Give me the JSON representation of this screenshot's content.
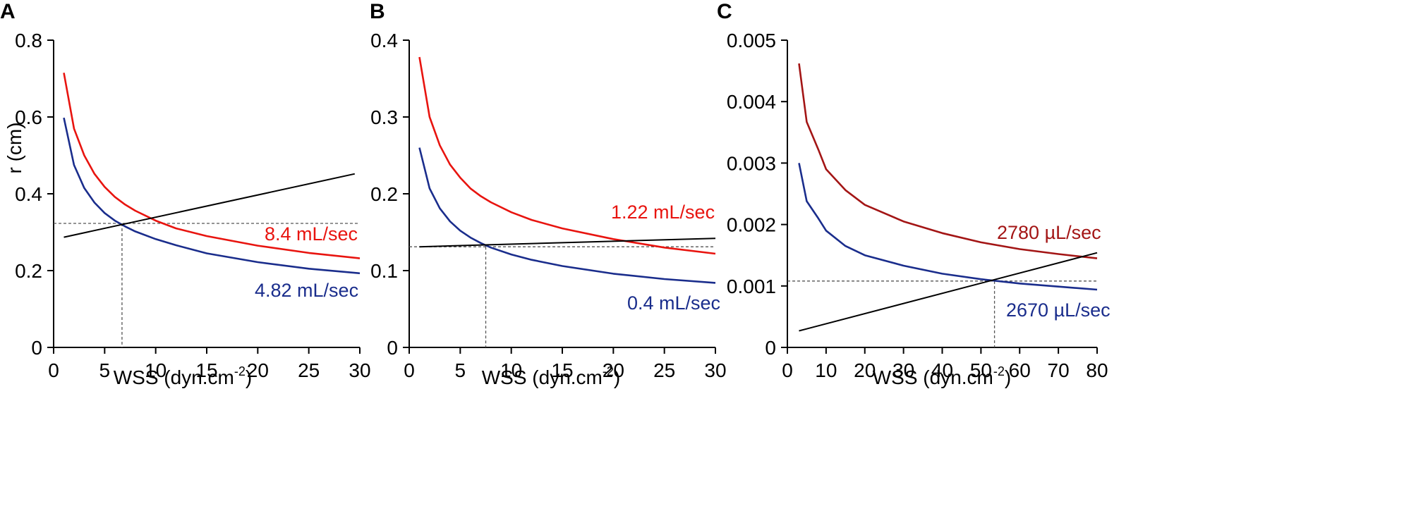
{
  "chart_data": [
    {
      "panel_label": "A",
      "type": "line",
      "xlabel": "WSS (dyn.cm",
      "xlabel_sup": "-2",
      "xlabel_close": ")",
      "ylabel": "r (cm)",
      "xlim": [
        0,
        30
      ],
      "ylim": [
        0,
        0.8
      ],
      "xticks": [
        0,
        5,
        10,
        15,
        20,
        25,
        30
      ],
      "yticks": [
        0,
        0.2,
        0.4,
        0.6,
        0.8
      ],
      "xtick_labels": [
        "0",
        "5",
        "10",
        "15",
        "20",
        "25",
        "30"
      ],
      "ytick_labels": [
        "0",
        "0.2",
        "0.4",
        "0.6",
        "0.8"
      ],
      "series": [
        {
          "name": "8.4 mL/sec",
          "color": "#e8140f",
          "x": [
            1,
            2,
            3,
            4,
            5,
            6,
            7,
            8,
            10,
            12,
            15,
            20,
            25,
            30
          ],
          "y": [
            0.715,
            0.57,
            0.5,
            0.452,
            0.418,
            0.392,
            0.372,
            0.356,
            0.33,
            0.31,
            0.29,
            0.265,
            0.246,
            0.232
          ]
        },
        {
          "name": "4.82 mL/sec",
          "color": "#1a2d8c",
          "x": [
            1,
            2,
            3,
            4,
            5,
            6,
            7,
            8,
            10,
            12,
            15,
            20,
            25,
            30
          ],
          "y": [
            0.598,
            0.475,
            0.415,
            0.377,
            0.35,
            0.33,
            0.315,
            0.302,
            0.282,
            0.266,
            0.245,
            0.222,
            0.205,
            0.193
          ]
        },
        {
          "name": "",
          "color": "#000000",
          "x": [
            1,
            29.5
          ],
          "y": [
            0.287,
            0.452
          ]
        }
      ],
      "intersection": {
        "x": 6.7,
        "y": 0.323
      }
    },
    {
      "panel_label": "B",
      "type": "line",
      "xlabel": "WSS (dyn.cm",
      "xlabel_sup": "-2",
      "xlabel_close": ")",
      "ylabel": "",
      "xlim": [
        0,
        30
      ],
      "ylim": [
        0,
        0.4
      ],
      "xticks": [
        0,
        5,
        10,
        15,
        20,
        25,
        30
      ],
      "yticks": [
        0,
        0.1,
        0.2,
        0.3,
        0.4
      ],
      "xtick_labels": [
        "0",
        "5",
        "10",
        "15",
        "20",
        "25",
        "30"
      ],
      "ytick_labels": [
        "0",
        "0.1",
        "0.2",
        "0.3",
        "0.4"
      ],
      "series": [
        {
          "name": "1.22 mL/sec",
          "color": "#e8140f",
          "x": [
            1,
            2,
            3,
            4,
            5,
            6,
            7,
            8,
            10,
            12,
            15,
            20,
            25,
            30
          ],
          "y": [
            0.378,
            0.3,
            0.263,
            0.238,
            0.221,
            0.207,
            0.197,
            0.189,
            0.176,
            0.166,
            0.155,
            0.141,
            0.13,
            0.122
          ]
        },
        {
          "name": "0.4 mL/sec",
          "color": "#1a2d8c",
          "x": [
            1,
            2,
            3,
            4,
            5,
            6,
            7,
            8,
            10,
            12,
            15,
            20,
            25,
            30
          ],
          "y": [
            0.26,
            0.207,
            0.181,
            0.164,
            0.152,
            0.143,
            0.136,
            0.13,
            0.121,
            0.114,
            0.106,
            0.096,
            0.089,
            0.084
          ]
        },
        {
          "name": "",
          "color": "#000000",
          "x": [
            1,
            30
          ],
          "y": [
            0.131,
            0.142
          ]
        }
      ],
      "intersection": {
        "x": 7.5,
        "y": 0.131
      }
    },
    {
      "panel_label": "C",
      "type": "line",
      "xlabel": "WSS (dyn.cm",
      "xlabel_sup": "-2",
      "xlabel_close": ")",
      "ylabel": "",
      "xlim": [
        0,
        80
      ],
      "ylim": [
        0,
        0.005
      ],
      "xticks": [
        0,
        10,
        20,
        30,
        40,
        50,
        60,
        70,
        80
      ],
      "yticks": [
        0,
        0.001,
        0.002,
        0.003,
        0.004,
        0.005
      ],
      "xtick_labels": [
        "0",
        "10",
        "20",
        "30",
        "40",
        "50",
        "60",
        "70",
        "80"
      ],
      "ytick_labels": [
        "0",
        "0.001",
        "0.002",
        "0.003",
        "0.004",
        "0.005"
      ],
      "series": [
        {
          "name": "2780 µL/sec",
          "color": "#a31515",
          "x": [
            3,
            5,
            8,
            10,
            15,
            20,
            30,
            40,
            50,
            60,
            70,
            80
          ],
          "y": [
            0.00462,
            0.00367,
            0.00322,
            0.0029,
            0.00256,
            0.00232,
            0.00205,
            0.00186,
            0.00171,
            0.0016,
            0.00152,
            0.00145
          ]
        },
        {
          "name": "2670 µL/sec",
          "color": "#1a2d8c",
          "x": [
            3,
            5,
            8,
            10,
            15,
            20,
            30,
            40,
            50,
            60,
            70,
            80
          ],
          "y": [
            0.003,
            0.00238,
            0.0021,
            0.0019,
            0.00165,
            0.0015,
            0.00133,
            0.0012,
            0.00111,
            0.00104,
            0.00099,
            0.00094
          ]
        },
        {
          "name": "",
          "color": "#000000",
          "x": [
            3,
            80
          ],
          "y": [
            0.00027,
            0.00154
          ]
        }
      ],
      "intersection": {
        "x": 53.5,
        "y": 0.00108
      }
    }
  ]
}
